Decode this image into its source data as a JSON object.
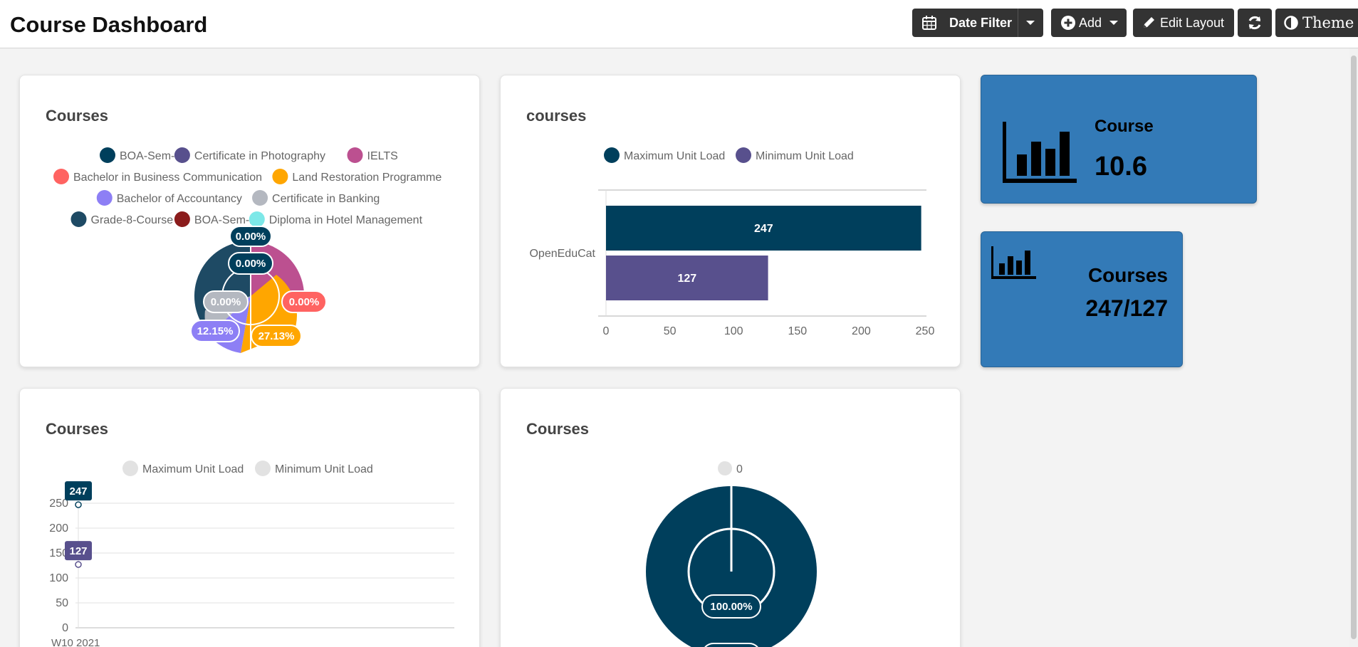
{
  "header": {
    "title": "Course Dashboard",
    "date_filter_label": "Date Filter",
    "add_label": "Add",
    "edit_layout_label": "Edit Layout",
    "theme_label": "Theme"
  },
  "colors": {
    "primary_dark": "#003f5c",
    "purple": "#58508d",
    "kpi_blue": "#337ab7"
  },
  "pie_card": {
    "title": "Courses",
    "legend": [
      {
        "name": "BOA-Sem-1",
        "color": "#003f5c"
      },
      {
        "name": "Certificate in Photography",
        "color": "#58508d"
      },
      {
        "name": "IELTS",
        "color": "#bc5090"
      },
      {
        "name": "Bachelor in Business Communication",
        "color": "#ff6361"
      },
      {
        "name": "Land Restoration Programme",
        "color": "#ffa600"
      },
      {
        "name": "Bachelor of Accountancy",
        "color": "#8d7ff5"
      },
      {
        "name": "Certificate in Banking",
        "color": "#b4b8c0"
      },
      {
        "name": "Grade-8-Course",
        "color": "#1e4a64"
      },
      {
        "name": "BOA-Sem-2",
        "color": "#8b1c1c"
      },
      {
        "name": "Diploma in Hotel Management",
        "color": "#7de8e8"
      }
    ],
    "labels": [
      "0.00%",
      "0.00%",
      "0.00%",
      "0.00%",
      "12.15%",
      "27.13%"
    ]
  },
  "bar_card": {
    "title": "courses",
    "legend": [
      "Maximum Unit Load",
      "Minimum Unit Load"
    ]
  },
  "line_card": {
    "title": "Courses",
    "legend": [
      "Maximum Unit Load",
      "Minimum Unit Load"
    ],
    "x_label": "W10 2021"
  },
  "donut_card": {
    "title": "Courses",
    "legend": [
      "0"
    ],
    "label": "100.00%"
  },
  "kpi1": {
    "label": "Course",
    "value": "10.6"
  },
  "kpi2": {
    "label": "Courses",
    "value": "247/127"
  },
  "chart_data": [
    {
      "type": "bar",
      "title": "courses",
      "orientation": "horizontal",
      "categories": [
        "OpenEduCat"
      ],
      "series": [
        {
          "name": "Maximum Unit Load",
          "values": [
            247
          ],
          "color": "#003f5c"
        },
        {
          "name": "Minimum Unit Load",
          "values": [
            127
          ],
          "color": "#58508d"
        }
      ],
      "xlim": [
        0,
        250
      ],
      "xticks": [
        0,
        50,
        100,
        150,
        200,
        250
      ]
    },
    {
      "type": "line",
      "title": "Courses",
      "categories": [
        "W10 2021"
      ],
      "series": [
        {
          "name": "Maximum Unit Load",
          "values": [
            247
          ],
          "color": "#003f5c"
        },
        {
          "name": "Minimum Unit Load",
          "values": [
            127
          ],
          "color": "#58508d"
        }
      ],
      "ylim": [
        0,
        250
      ],
      "yticks": [
        0,
        50,
        100,
        150,
        200,
        250
      ]
    }
  ]
}
